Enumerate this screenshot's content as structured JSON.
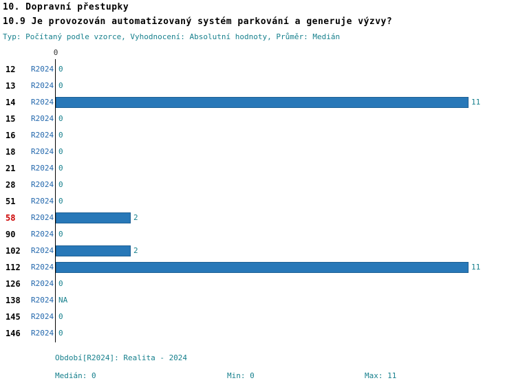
{
  "header": {
    "title": "10. Dopravní přestupky",
    "subtitle": "10.9 Je provozován automatizovaný systém parkování a generuje výzvy?",
    "meta": "Typ: Počítaný podle vzorce, Vyhodnocení: Absolutní hodnoty, Průměr: Medián"
  },
  "chart_data": {
    "type": "bar",
    "orientation": "horizontal",
    "title": "10.9 Je provozován automatizovaný systém parkování a generuje výzvy?",
    "categories": [
      "12",
      "13",
      "14",
      "15",
      "16",
      "18",
      "21",
      "28",
      "51",
      "58",
      "90",
      "102",
      "112",
      "126",
      "138",
      "145",
      "146"
    ],
    "series_label": "R2024",
    "values": [
      0,
      0,
      11,
      0,
      0,
      0,
      0,
      0,
      0,
      2,
      0,
      2,
      11,
      0,
      null,
      0,
      0
    ],
    "value_labels": [
      "0",
      "0",
      "11",
      "0",
      "0",
      "0",
      "0",
      "0",
      "0",
      "2",
      "0",
      "2",
      "11",
      "0",
      "NA",
      "0",
      "0"
    ],
    "highlighted_category": "58",
    "x_axis_origin_label": "0",
    "xlim": [
      0,
      11
    ],
    "grid": false,
    "legend": "none",
    "colors": {
      "bar": "#2878b8",
      "bar_border": "#1c5f94",
      "category_label": "#000000",
      "highlighted_category_label": "#cc0000",
      "series_label": "#2166ac",
      "value_label": "#17808d",
      "axis": "#000000"
    }
  },
  "footer": {
    "period": "Období[R2024]: Realita - 2024",
    "median": "Medián: 0",
    "min": "Min: 0",
    "max": "Max: 11"
  }
}
